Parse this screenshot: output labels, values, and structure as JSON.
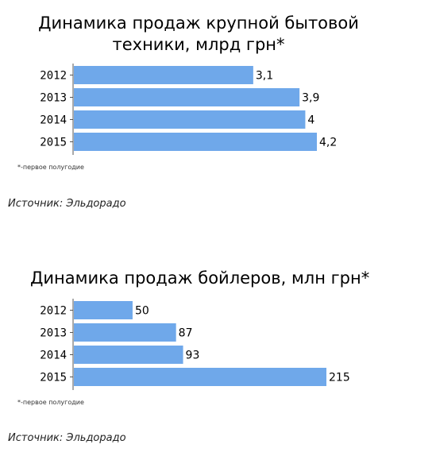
{
  "chart_data": [
    {
      "type": "bar",
      "orientation": "horizontal",
      "title": "Динамика продаж крупной бытовой техники, млрд грн*",
      "categories": [
        "2012",
        "2013",
        "2014",
        "2015"
      ],
      "values": [
        3.1,
        3.9,
        4,
        4.2
      ],
      "value_labels": [
        "3,1",
        "3,9",
        "4",
        "4,2"
      ],
      "xlim": [
        0,
        4.2
      ],
      "grid": false,
      "note": "*-первое полугодие",
      "source": "Источник: Эльдорадо",
      "bar_color": "#6fa8ea"
    },
    {
      "type": "bar",
      "orientation": "horizontal",
      "title": "Динамика продаж бойлеров, млн грн*",
      "categories": [
        "2012",
        "2013",
        "2014",
        "2015"
      ],
      "values": [
        50,
        87,
        93,
        215
      ],
      "value_labels": [
        "50",
        "87",
        "93",
        "215"
      ],
      "xlim": [
        0,
        215
      ],
      "grid": false,
      "note": "*-первое полугодие",
      "source": "Источник: Эльдорадо",
      "bar_color": "#6fa8ea"
    }
  ]
}
